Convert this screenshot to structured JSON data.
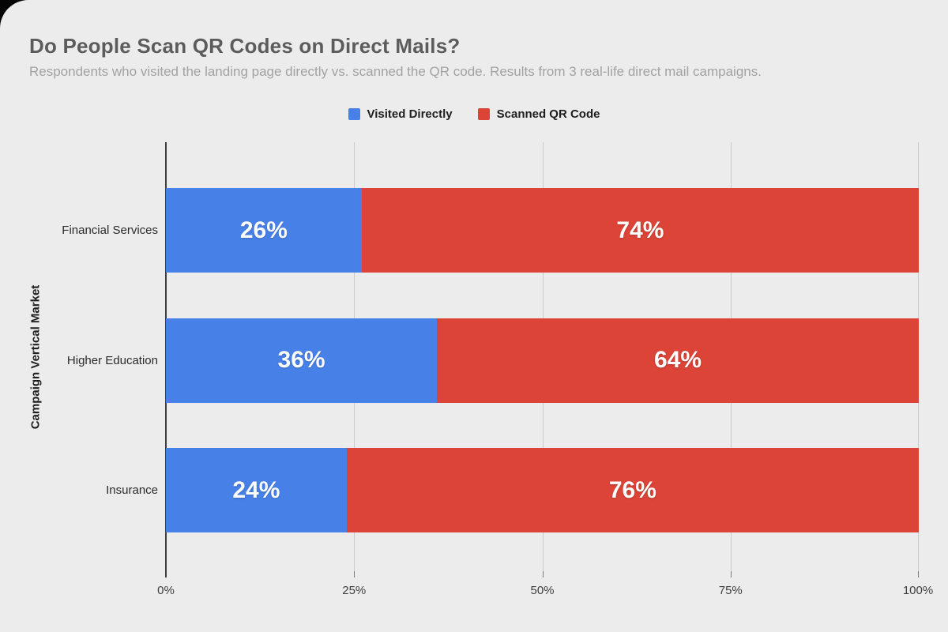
{
  "header": {
    "title": "Do People Scan QR Codes on Direct Mails?",
    "subtitle": "Respondents who visited the landing page directly vs. scanned the QR code. Results from 3 real-life direct mail campaigns."
  },
  "legend": {
    "items": [
      {
        "label": "Visited Directly",
        "color": "#4781E8"
      },
      {
        "label": "Scanned QR Code",
        "color": "#DB4437"
      }
    ]
  },
  "chart_data": {
    "type": "bar",
    "stacked": true,
    "orientation": "horizontal",
    "title": "Do People Scan QR Codes on Direct Mails?",
    "subtitle": "Respondents who visited the landing page directly vs. scanned the QR code. Results from 3 real-life direct mail campaigns.",
    "xlabel": "",
    "ylabel": "Campaign Vertical Market",
    "categories": [
      "Financial Services",
      "Higher Education",
      "Insurance"
    ],
    "series": [
      {
        "name": "Visited Directly",
        "color": "#4781E8",
        "values": [
          26,
          36,
          24
        ]
      },
      {
        "name": "Scanned QR Code",
        "color": "#DB4437",
        "values": [
          74,
          64,
          76
        ]
      }
    ],
    "value_suffix": "%",
    "bar_label_color": "#FFFFFF",
    "x_ticks": [
      "0%",
      "25%",
      "50%",
      "75%",
      "100%"
    ],
    "x_tick_values": [
      0,
      25,
      50,
      75,
      100
    ],
    "xlim": [
      0,
      100
    ],
    "grid": "vertical",
    "legend_position": "top"
  },
  "colors": {
    "background": "#ECECEC",
    "title": "#5C5C5C",
    "subtitle": "#A2A2A2",
    "gridline": "#CBCBCB",
    "axis_line": "#3E3E3E",
    "tick_label": "#3E3E3E",
    "category_label": "#2A2A2A",
    "corner_artifact": "#050505"
  }
}
